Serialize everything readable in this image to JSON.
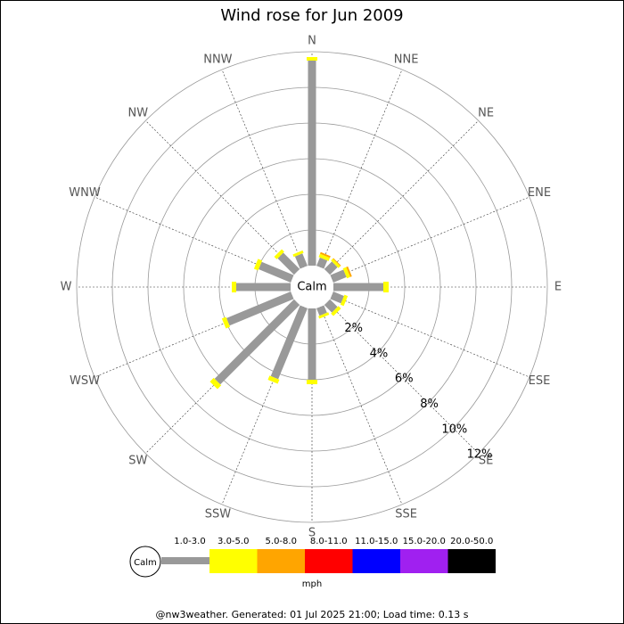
{
  "chart_data": {
    "type": "rose",
    "title": "Wind rose for Jun 2009",
    "categories": [
      "N",
      "NNE",
      "NE",
      "ENE",
      "E",
      "ESE",
      "SE",
      "SSE",
      "S",
      "SSW",
      "SW",
      "WSW",
      "W",
      "WNW",
      "NW",
      "NNW"
    ],
    "series": [
      {
        "name": "1.0-3.0",
        "color": "#999999",
        "values": [
          11.5,
          0.5,
          0.6,
          0.8,
          2.8,
          0.65,
          0.6,
          0.45,
          4.0,
          4.3,
          6.3,
          3.9,
          3.05,
          1.95,
          1.3,
          0.75
        ]
      },
      {
        "name": "3.0-5.0",
        "color": "#ffff00",
        "values": [
          0.2,
          0.2,
          0.15,
          0.2,
          0.3,
          0.2,
          0.2,
          0.15,
          0.25,
          0.25,
          0.3,
          0.25,
          0.25,
          0.25,
          0.2,
          0.15
        ]
      },
      {
        "name": "5.0-8.0",
        "color": "#ffa500",
        "values": [
          0,
          0.1,
          0.05,
          0.1,
          0,
          0,
          0,
          0,
          0,
          0,
          0,
          0,
          0,
          0,
          0,
          0
        ]
      },
      {
        "name": "8.0-11.0",
        "color": "#ff0000",
        "values": [
          0,
          0,
          0,
          0,
          0,
          0,
          0,
          0,
          0,
          0,
          0,
          0,
          0,
          0,
          0,
          0
        ]
      },
      {
        "name": "11.0-15.0",
        "color": "#0000ff",
        "values": [
          0,
          0,
          0,
          0,
          0,
          0,
          0,
          0,
          0,
          0,
          0,
          0,
          0,
          0,
          0,
          0
        ]
      },
      {
        "name": "15.0-20.0",
        "color": "#a020f0",
        "values": [
          0,
          0,
          0,
          0,
          0,
          0,
          0,
          0,
          0,
          0,
          0,
          0,
          0,
          0,
          0,
          0
        ]
      },
      {
        "name": "20.0-50.0",
        "color": "#000000",
        "values": [
          0,
          0,
          0,
          0,
          0,
          0,
          0,
          0,
          0,
          0,
          0,
          0,
          0,
          0,
          0,
          0
        ]
      }
    ],
    "rlim": [
      0,
      12
    ],
    "rticks": [
      {
        "value": 2,
        "label": "2%"
      },
      {
        "value": 4,
        "label": "4%"
      },
      {
        "value": 6,
        "label": "6%"
      },
      {
        "value": 8,
        "label": "8%"
      },
      {
        "value": 10,
        "label": "10%"
      },
      {
        "value": 12,
        "label": "12%"
      }
    ],
    "calm_label": "Calm",
    "unit_label": "mph",
    "footer": "@nw3weather. Generated: 01 Jul 2025 21:00; Load time: 0.13 s"
  }
}
